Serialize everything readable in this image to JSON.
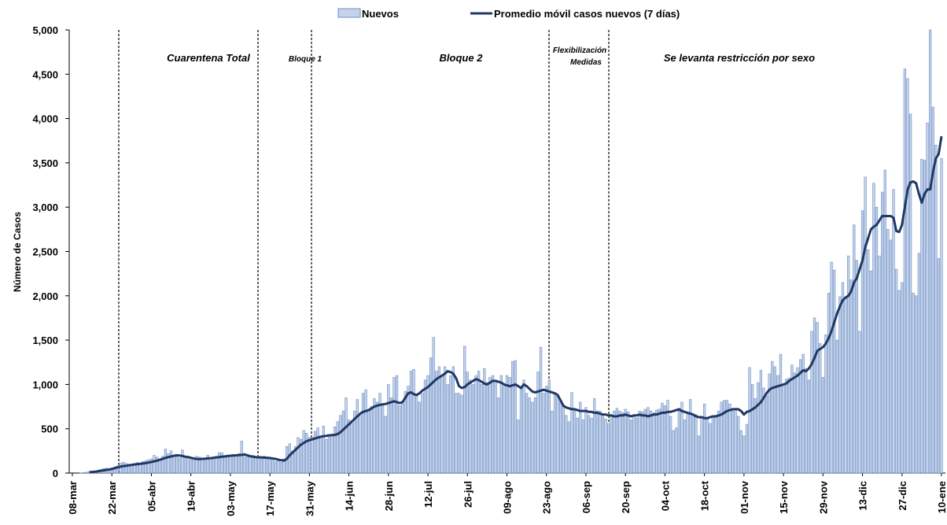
{
  "chart_data": {
    "type": "bar_line",
    "y_axis_label": "Número de Casos",
    "categories": [
      "08-mar",
      null,
      null,
      null,
      null,
      null,
      null,
      null,
      null,
      null,
      null,
      null,
      null,
      null,
      "22-mar",
      null,
      null,
      null,
      null,
      null,
      null,
      null,
      null,
      null,
      null,
      null,
      null,
      null,
      "05-abr",
      null,
      null,
      null,
      null,
      null,
      null,
      null,
      null,
      null,
      null,
      null,
      null,
      null,
      "19-abr",
      null,
      null,
      null,
      null,
      null,
      null,
      null,
      null,
      null,
      null,
      null,
      null,
      null,
      "03-may",
      null,
      null,
      null,
      null,
      null,
      null,
      null,
      null,
      null,
      null,
      null,
      null,
      null,
      "17-may",
      null,
      null,
      null,
      null,
      null,
      null,
      null,
      null,
      null,
      null,
      null,
      null,
      null,
      "31-may",
      null,
      null,
      null,
      null,
      null,
      null,
      null,
      null,
      null,
      null,
      null,
      null,
      null,
      "14-jun",
      null,
      null,
      null,
      null,
      null,
      null,
      null,
      null,
      null,
      null,
      null,
      null,
      null,
      "28-jun",
      null,
      null,
      null,
      null,
      null,
      null,
      null,
      null,
      null,
      null,
      null,
      null,
      null,
      "12-jul",
      null,
      null,
      null,
      null,
      null,
      null,
      null,
      null,
      null,
      null,
      null,
      null,
      null,
      "26-jul",
      null,
      null,
      null,
      null,
      null,
      null,
      null,
      null,
      null,
      null,
      null,
      null,
      null,
      "09-ago",
      null,
      null,
      null,
      null,
      null,
      null,
      null,
      null,
      null,
      null,
      null,
      null,
      null,
      "23-ago",
      null,
      null,
      null,
      null,
      null,
      null,
      null,
      null,
      null,
      null,
      null,
      null,
      null,
      "06-sep",
      null,
      null,
      null,
      null,
      null,
      null,
      null,
      null,
      null,
      null,
      null,
      null,
      null,
      "20-sep",
      null,
      null,
      null,
      null,
      null,
      null,
      null,
      null,
      null,
      null,
      null,
      null,
      null,
      "04-oct",
      null,
      null,
      null,
      null,
      null,
      null,
      null,
      null,
      null,
      null,
      null,
      null,
      null,
      "18-oct",
      null,
      null,
      null,
      null,
      null,
      null,
      null,
      null,
      null,
      null,
      null,
      null,
      null,
      "01-nov",
      null,
      null,
      null,
      null,
      null,
      null,
      null,
      null,
      null,
      null,
      null,
      null,
      null,
      "15-nov",
      null,
      null,
      null,
      null,
      null,
      null,
      null,
      null,
      null,
      null,
      null,
      null,
      null,
      "29-nov",
      null,
      null,
      null,
      null,
      null,
      null,
      null,
      null,
      null,
      null,
      null,
      null,
      null,
      "13-dic",
      null,
      null,
      null,
      null,
      null,
      null,
      null,
      null,
      null,
      null,
      null,
      null,
      null,
      "27-dic",
      null,
      null,
      null,
      null,
      null,
      null,
      null,
      null,
      null,
      null,
      null,
      null,
      null,
      "10-ene"
    ],
    "series": [
      {
        "name": "Nuevos",
        "kind": "bar",
        "color": "#c5d3ea",
        "edge": "#6f8fc6",
        "values": [
          0,
          0,
          0,
          2,
          5,
          10,
          15,
          20,
          25,
          30,
          40,
          50,
          55,
          45,
          60,
          70,
          80,
          110,
          120,
          110,
          100,
          95,
          110,
          120,
          110,
          130,
          140,
          150,
          160,
          200,
          180,
          150,
          190,
          270,
          220,
          250,
          200,
          180,
          170,
          260,
          180,
          190,
          150,
          160,
          190,
          180,
          150,
          170,
          200,
          160,
          180,
          190,
          230,
          230,
          180,
          200,
          190,
          210,
          200,
          220,
          360,
          200,
          180,
          190,
          200,
          170,
          180,
          160,
          190,
          170,
          170,
          150,
          130,
          140,
          120,
          160,
          300,
          330,
          250,
          300,
          400,
          380,
          480,
          450,
          400,
          400,
          470,
          510,
          420,
          530,
          380,
          430,
          440,
          520,
          580,
          650,
          700,
          850,
          600,
          560,
          700,
          830,
          650,
          900,
          940,
          700,
          750,
          840,
          800,
          900,
          780,
          640,
          1000,
          850,
          1080,
          1100,
          760,
          780,
          920,
          980,
          1150,
          1170,
          880,
          800,
          900,
          1050,
          1100,
          1300,
          1530,
          1150,
          1200,
          1100,
          1200,
          1000,
          1100,
          1200,
          900,
          900,
          880,
          1430,
          1140,
          1050,
          1000,
          1100,
          1150,
          1000,
          1180,
          1020,
          1080,
          1100,
          1050,
          850,
          1100,
          1000,
          1100,
          1080,
          1260,
          1270,
          600,
          950,
          1050,
          900,
          850,
          800,
          850,
          1140,
          1420,
          900,
          980,
          1050,
          700,
          900,
          880,
          800,
          760,
          650,
          580,
          910,
          700,
          620,
          800,
          600,
          740,
          650,
          620,
          840,
          700,
          700,
          640,
          610,
          560,
          650,
          700,
          730,
          700,
          680,
          720,
          690,
          600,
          640,
          620,
          700,
          690,
          720,
          740,
          700,
          680,
          710,
          720,
          790,
          760,
          820,
          640,
          480,
          510,
          700,
          800,
          600,
          680,
          830,
          660,
          660,
          420,
          640,
          780,
          620,
          560,
          640,
          640,
          700,
          800,
          820,
          820,
          780,
          700,
          720,
          640,
          480,
          420,
          550,
          1190,
          1000,
          840,
          1020,
          1160,
          960,
          870,
          1120,
          1260,
          1200,
          1100,
          1340,
          1000,
          1060,
          1070,
          1220,
          1130,
          1190,
          1280,
          1340,
          1180,
          1050,
          1600,
          1750,
          1700,
          1460,
          1080,
          1560,
          2030,
          2380,
          2290,
          1500,
          1990,
          2150,
          1990,
          2450,
          2180,
          2800,
          2400,
          1600,
          2960,
          3340,
          2520,
          2280,
          3270,
          3000,
          2450,
          3170,
          3420,
          2750,
          2630,
          3200,
          2300,
          2060,
          2150,
          4560,
          4450,
          4050,
          2030,
          2000,
          2480,
          3540,
          3530,
          3950,
          5000,
          4130,
          3700,
          2420,
          3550
        ]
      },
      {
        "name": "Promedio móvil casos nuevos (7 días)",
        "kind": "line",
        "color": "#1f3864",
        "values": [
          null,
          null,
          null,
          null,
          null,
          null,
          10,
          12,
          15,
          20,
          25,
          30,
          35,
          40,
          45,
          55,
          65,
          72,
          78,
          82,
          88,
          92,
          96,
          100,
          104,
          108,
          112,
          118,
          125,
          132,
          140,
          150,
          160,
          170,
          180,
          188,
          195,
          200,
          198,
          192,
          185,
          180,
          172,
          165,
          160,
          158,
          160,
          162,
          165,
          168,
          172,
          176,
          180,
          184,
          188,
          192,
          195,
          198,
          200,
          202,
          205,
          210,
          200,
          190,
          185,
          180,
          178,
          176,
          174,
          172,
          170,
          165,
          160,
          150,
          145,
          140,
          160,
          200,
          230,
          260,
          290,
          320,
          340,
          360,
          370,
          380,
          390,
          400,
          410,
          415,
          420,
          425,
          428,
          430,
          440,
          460,
          490,
          520,
          550,
          580,
          610,
          640,
          670,
          690,
          700,
          710,
          730,
          750,
          760,
          770,
          775,
          780,
          790,
          800,
          810,
          800,
          790,
          800,
          850,
          900,
          910,
          890,
          880,
          900,
          930,
          950,
          970,
          1000,
          1030,
          1060,
          1080,
          1100,
          1120,
          1150,
          1140,
          1120,
          1070,
          980,
          960,
          970,
          1000,
          1020,
          1040,
          1060,
          1050,
          1030,
          1010,
          1000,
          1020,
          1040,
          1040,
          1030,
          1020,
          1000,
          990,
          980,
          990,
          1000,
          980,
          960,
          1000,
          980,
          950,
          920,
          910,
          920,
          930,
          940,
          930,
          920,
          910,
          900,
          880,
          820,
          760,
          740,
          730,
          720,
          720,
          710,
          700,
          700,
          700,
          690,
          690,
          680,
          680,
          670,
          660,
          660,
          650,
          650,
          640,
          640,
          650,
          650,
          660,
          650,
          640,
          650,
          650,
          660,
          650,
          650,
          640,
          650,
          660,
          660,
          670,
          680,
          680,
          690,
          690,
          700,
          710,
          720,
          700,
          690,
          680,
          670,
          660,
          640,
          630,
          630,
          620,
          620,
          630,
          640,
          640,
          650,
          660,
          680,
          700,
          710,
          720,
          720,
          720,
          700,
          660,
          690,
          700,
          720,
          740,
          770,
          800,
          850,
          900,
          940,
          960,
          970,
          980,
          990,
          1000,
          1010,
          1040,
          1060,
          1080,
          1100,
          1130,
          1160,
          1150,
          1180,
          1230,
          1300,
          1380,
          1400,
          1420,
          1460,
          1520,
          1600,
          1700,
          1800,
          1880,
          1950,
          1980,
          2000,
          2050,
          2150,
          2200,
          2300,
          2400,
          2550,
          2650,
          2750,
          2780,
          2800,
          2850,
          2900,
          2900,
          2900,
          2900,
          2880,
          2730,
          2720,
          2800,
          3000,
          3200,
          3280,
          3290,
          3270,
          3150,
          3050,
          3150,
          3200,
          3200,
          3400,
          3550,
          3600,
          3800
        ]
      }
    ],
    "ylim": [
      0,
      5000
    ],
    "yticks": [
      0,
      500,
      {
        "value": 1000,
        "label": "1,000"
      },
      {
        "value": 1500,
        "label": "1,500"
      },
      {
        "value": 2000,
        "label": "2,000"
      },
      {
        "value": 2500,
        "label": "2,500"
      },
      {
        "value": 3000,
        "label": "3,000"
      },
      {
        "value": 3500,
        "label": "3,500"
      },
      {
        "value": 4000,
        "label": "4,000"
      },
      {
        "value": 4500,
        "label": "4,500"
      },
      {
        "value": 5000,
        "label": "5,000"
      }
    ],
    "annotations": [
      "Cuarentena Total",
      "Bloque 1",
      "Bloque 2",
      "Flexibilización",
      "Medidas",
      "Se levanta restricción por sexo"
    ],
    "grid": false
  }
}
